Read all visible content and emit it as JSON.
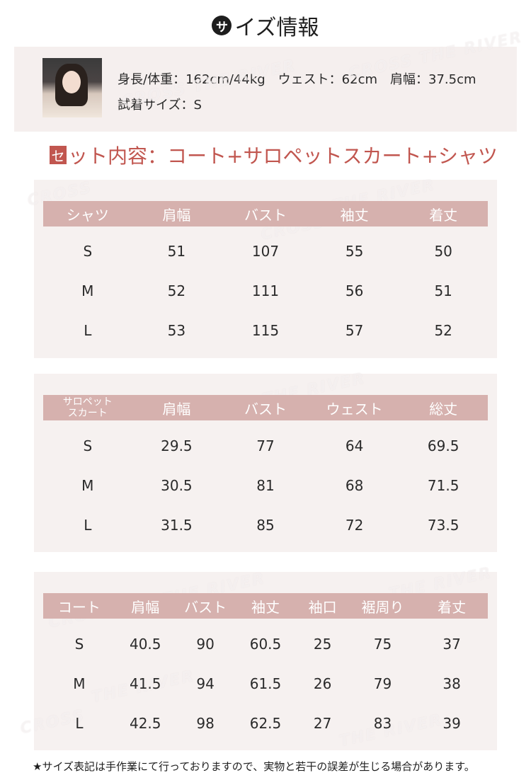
{
  "title": {
    "badge": "サ",
    "text": "イズ情報"
  },
  "model": {
    "line1": "身長/体重：162cm/44kg　ウェスト：62cm　肩幅：37.5cm",
    "line2": "試着サイズ：S"
  },
  "set_heading": {
    "badge": "セ",
    "text": "ット内容：コート+サロペットスカート+シャツ"
  },
  "watermark": {
    "brand1": "CROSS",
    "brand2": "THE",
    "brand3": "RIVER"
  },
  "tables": {
    "shirt": {
      "headers": [
        "シャツ",
        "肩幅",
        "バスト",
        "袖丈",
        "着丈"
      ],
      "rows": [
        [
          "S",
          "51",
          "107",
          "55",
          "50"
        ],
        [
          "M",
          "52",
          "111",
          "56",
          "51"
        ],
        [
          "L",
          "53",
          "115",
          "57",
          "52"
        ]
      ]
    },
    "skirt": {
      "headers": [
        "サロペット\nスカート",
        "肩幅",
        "バスト",
        "ウェスト",
        "総丈"
      ],
      "header_line1": "サロペット",
      "header_line2": "スカート",
      "rows": [
        [
          "S",
          "29.5",
          "77",
          "64",
          "69.5"
        ],
        [
          "M",
          "30.5",
          "81",
          "68",
          "71.5"
        ],
        [
          "L",
          "31.5",
          "85",
          "72",
          "73.5"
        ]
      ]
    },
    "coat": {
      "headers": [
        "コート",
        "肩幅",
        "バスト",
        "袖丈",
        "袖口",
        "裾周り",
        "着丈"
      ],
      "rows": [
        [
          "S",
          "40.5",
          "90",
          "60.5",
          "25",
          "75",
          "37"
        ],
        [
          "M",
          "41.5",
          "94",
          "61.5",
          "26",
          "79",
          "38"
        ],
        [
          "L",
          "42.5",
          "98",
          "62.5",
          "27",
          "83",
          "39"
        ]
      ]
    }
  },
  "footnote": "★サイズ表記は手作業にて行っておりますので、実物と若干の誤差が生じる場合があります。"
}
